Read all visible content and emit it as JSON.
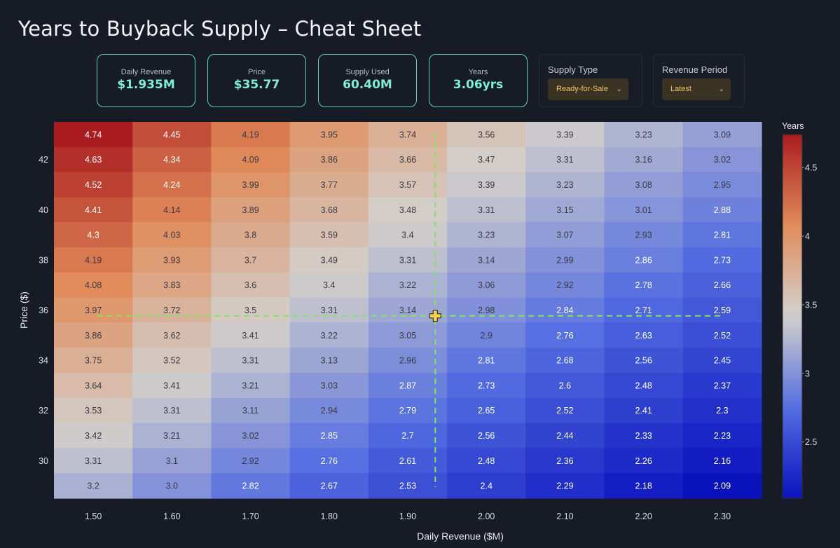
{
  "title": "Years to Buyback Supply – Cheat Sheet",
  "stats": [
    {
      "label": "Daily Revenue",
      "value": "$1.935M"
    },
    {
      "label": "Price",
      "value": "$35.77"
    },
    {
      "label": "Supply Used",
      "value": "60.40M"
    },
    {
      "label": "Years",
      "value": "3.06yrs"
    }
  ],
  "controls": {
    "supply_type": {
      "label": "Supply Type",
      "selected": "Ready-for-Sale"
    },
    "revenue_period": {
      "label": "Revenue Period",
      "selected": "Latest"
    }
  },
  "colors": {
    "accent": "#7df0d2",
    "crosshair": "#7ee85a",
    "marker": "#f2d04a",
    "low": "#0a14c2",
    "mid": "#d4d4d6",
    "high": "#b01e20"
  },
  "chart_data": {
    "type": "heatmap",
    "xlabel": "Daily Revenue ($M)",
    "ylabel": "Price ($)",
    "colorbar_title": "Years",
    "x": [
      1.5,
      1.6,
      1.7,
      1.8,
      1.9,
      2.0,
      2.1,
      2.2,
      2.3
    ],
    "x_tick_labels": [
      "1.50",
      "1.60",
      "1.70",
      "1.80",
      "1.90",
      "2.00",
      "2.10",
      "2.20",
      "2.30"
    ],
    "y": [
      43,
      42,
      41,
      40,
      39,
      38,
      37,
      36,
      35,
      34,
      33,
      32,
      31,
      30,
      29
    ],
    "y_ticks": [
      42,
      40,
      38,
      36,
      34,
      32,
      30
    ],
    "z": [
      [
        "4.74",
        "4.45",
        "4.19",
        "3.95",
        "3.74",
        "3.56",
        "3.39",
        "3.23",
        "3.09"
      ],
      [
        "4.63",
        "4.34",
        "4.09",
        "3.86",
        "3.66",
        "3.47",
        "3.31",
        "3.16",
        "3.02"
      ],
      [
        "4.52",
        "4.24",
        "3.99",
        "3.77",
        "3.57",
        "3.39",
        "3.23",
        "3.08",
        "2.95"
      ],
      [
        "4.41",
        "4.14",
        "3.89",
        "3.68",
        "3.48",
        "3.31",
        "3.15",
        "3.01",
        "2.88"
      ],
      [
        "4.3",
        "4.03",
        "3.8",
        "3.59",
        "3.4",
        "3.23",
        "3.07",
        "2.93",
        "2.81"
      ],
      [
        "4.19",
        "3.93",
        "3.7",
        "3.49",
        "3.31",
        "3.14",
        "2.99",
        "2.86",
        "2.73"
      ],
      [
        "4.08",
        "3.83",
        "3.6",
        "3.4",
        "3.22",
        "3.06",
        "2.92",
        "2.78",
        "2.66"
      ],
      [
        "3.97",
        "3.72",
        "3.5",
        "3.31",
        "3.14",
        "2.98",
        "2.84",
        "2.71",
        "2.59"
      ],
      [
        "3.86",
        "3.62",
        "3.41",
        "3.22",
        "3.05",
        "2.9",
        "2.76",
        "2.63",
        "2.52"
      ],
      [
        "3.75",
        "3.52",
        "3.31",
        "3.13",
        "2.96",
        "2.81",
        "2.68",
        "2.56",
        "2.45"
      ],
      [
        "3.64",
        "3.41",
        "3.21",
        "3.03",
        "2.87",
        "2.73",
        "2.6",
        "2.48",
        "2.37"
      ],
      [
        "3.53",
        "3.31",
        "3.11",
        "2.94",
        "2.79",
        "2.65",
        "2.52",
        "2.41",
        "2.3"
      ],
      [
        "3.42",
        "3.21",
        "3.02",
        "2.85",
        "2.7",
        "2.56",
        "2.44",
        "2.33",
        "2.23"
      ],
      [
        "3.31",
        "3.1",
        "2.92",
        "2.76",
        "2.61",
        "2.48",
        "2.36",
        "2.26",
        "2.16"
      ],
      [
        "3.2",
        "3.0",
        "2.82",
        "2.67",
        "2.53",
        "2.4",
        "2.29",
        "2.18",
        "2.09"
      ]
    ],
    "z_range": [
      2.09,
      4.74
    ],
    "colorbar_ticks": [
      "4.5",
      "4",
      "3.5",
      "3",
      "2.5"
    ],
    "marker": {
      "x": 1.935,
      "y": 35.77
    },
    "crosshair": "dashed"
  }
}
